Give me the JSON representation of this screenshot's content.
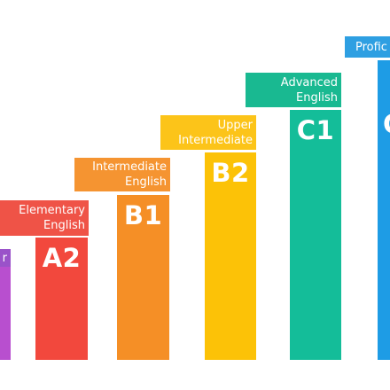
{
  "levels": [
    {
      "code": "",
      "label": [
        "r"
      ],
      "bar_color": "#b84fcf",
      "label_color": "#9a52c9"
    },
    {
      "code": "A2",
      "label": [
        "Elementary",
        "English"
      ],
      "bar_color": "#f2483d",
      "label_color": "#ef5347"
    },
    {
      "code": "B1",
      "label": [
        "Intermediate",
        "English"
      ],
      "bar_color": "#f58f26",
      "label_color": "#f59431"
    },
    {
      "code": "B2",
      "label": [
        "Upper",
        "Intermediate"
      ],
      "bar_color": "#fcc207",
      "label_color": "#fcc419"
    },
    {
      "code": "C1",
      "label": [
        "Advanced",
        "English"
      ],
      "bar_color": "#14bd99",
      "label_color": "#19b991"
    },
    {
      "code": "C",
      "label": [
        "Profic"
      ],
      "bar_color": "#1e9ce5",
      "label_color": "#2e9fe2"
    }
  ]
}
